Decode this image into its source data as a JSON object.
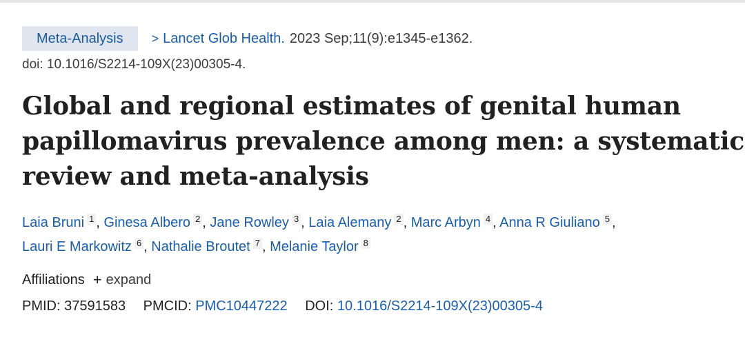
{
  "citation": {
    "article_type": "Meta-Analysis",
    "chevron": ">",
    "journal": "Lancet Glob Health.",
    "date_volume": "2023 Sep;11(9):e1345-e1362.",
    "doi_line": "doi: 10.1016/S2214-109X(23)00305-4."
  },
  "title_lines": [
    "Global and regional estimates of genital human",
    "papillomavirus prevalence among men: a systematic",
    "review and meta-analysis"
  ],
  "authors": [
    {
      "name": "Laia Bruni",
      "aff": "1"
    },
    {
      "name": "Ginesa Albero",
      "aff": "2"
    },
    {
      "name": "Jane Rowley",
      "aff": "3"
    },
    {
      "name": "Laia Alemany",
      "aff": "2"
    },
    {
      "name": "Marc Arbyn",
      "aff": "4"
    },
    {
      "name": "Anna R Giuliano",
      "aff": "5"
    },
    {
      "name": "Lauri E Markowitz",
      "aff": "6"
    },
    {
      "name": "Nathalie Broutet",
      "aff": "7"
    },
    {
      "name": "Melanie Taylor",
      "aff": "8"
    }
  ],
  "separator": ",",
  "affiliations": {
    "label": "Affiliations",
    "plus": "+",
    "expand_label": "expand"
  },
  "identifiers": {
    "pmid_label": "PMID:",
    "pmid": "37591583",
    "pmcid_label": "PMCID:",
    "pmcid": "PMC10447222",
    "doi_label": "DOI:",
    "doi": "10.1016/S2214-109X(23)00305-4"
  },
  "colors": {
    "link": "#1a5ea8",
    "badge_bg": "#dfe6f0",
    "text": "#212121"
  }
}
